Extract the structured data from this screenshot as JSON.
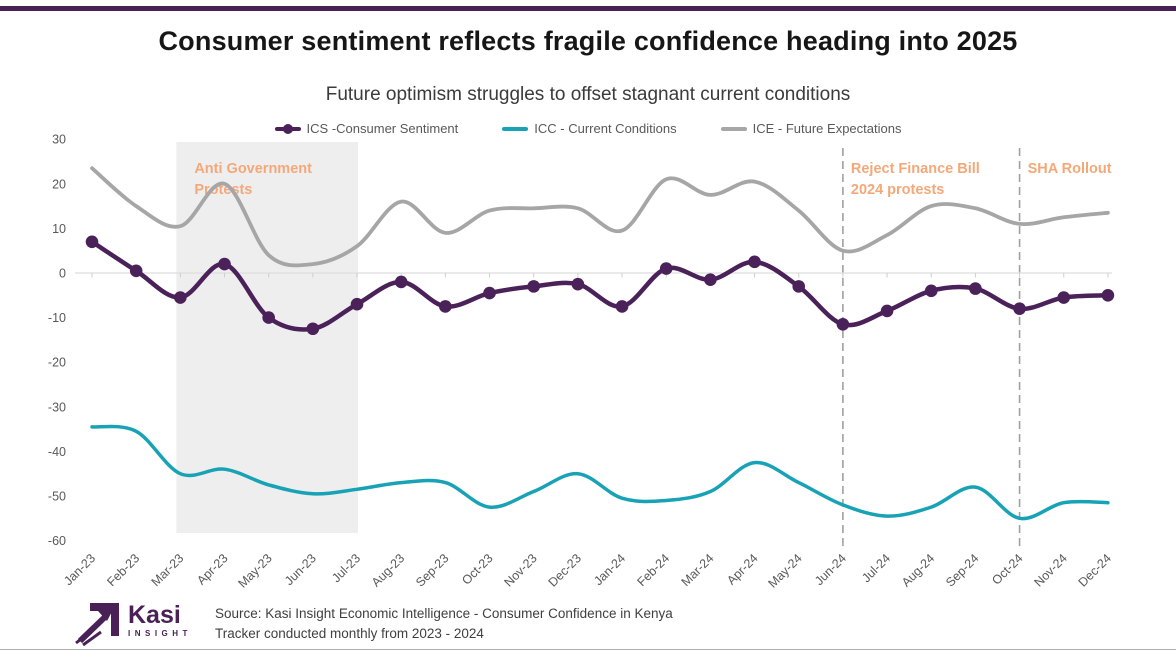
{
  "page": {
    "title": "Consumer sentiment reflects fragile confidence heading into 2025",
    "subtitle": "Future optimism struggles to offset stagnant current conditions",
    "top_bar_color": "#4a2156",
    "accent_orange": "#f4a879"
  },
  "legend": {
    "items": [
      {
        "label": "ICS -Consumer Sentiment",
        "color": "#4a2158",
        "marker": "line-dot"
      },
      {
        "label": "ICC - Current Conditions",
        "color": "#17a2b5",
        "marker": "line"
      },
      {
        "label": "ICE - Future Expectations",
        "color": "#a6a6a6",
        "marker": "line"
      }
    ]
  },
  "chart_data": {
    "type": "line",
    "x": [
      "Jan-23",
      "Feb-23",
      "Mar-23",
      "Apr-23",
      "May-23",
      "Jun-23",
      "Jul-23",
      "Aug-23",
      "Sep-23",
      "Oct-23",
      "Nov-23",
      "Dec-23",
      "Jan-24",
      "Feb-24",
      "Mar-24",
      "Apr-24",
      "May-24",
      "Jun-24",
      "Jul-24",
      "Aug-24",
      "Sep-24",
      "Oct-24",
      "Nov-24",
      "Dec-24"
    ],
    "series": [
      {
        "name": "ICS -Consumer Sentiment",
        "color": "#4a2158",
        "marker": true,
        "values": [
          7,
          0.5,
          -5.5,
          2,
          -10,
          -12.5,
          -7,
          -2,
          -7.5,
          -4.5,
          -3,
          -2.5,
          -7.5,
          1,
          -1.5,
          2.5,
          -3,
          -11.5,
          -8.5,
          -4,
          -3.5,
          -8,
          -5.5,
          -5
        ]
      },
      {
        "name": "ICC - Current Conditions",
        "color": "#17a2b5",
        "marker": false,
        "values": [
          -34.5,
          -35.5,
          -45,
          -44,
          -47.5,
          -49.5,
          -48.5,
          -47,
          -47,
          -52.5,
          -49,
          -45,
          -50.5,
          -51,
          -49,
          -42.5,
          -47,
          -52,
          -54.5,
          -52.5,
          -48,
          -55,
          -51.5,
          -51.5
        ]
      },
      {
        "name": "ICE - Future Expectations",
        "color": "#a6a6a6",
        "marker": false,
        "values": [
          23.5,
          15,
          10.5,
          20,
          4,
          2,
          6,
          16,
          9,
          14,
          14.5,
          14.5,
          9.5,
          21,
          17.5,
          20.5,
          14,
          5,
          8.5,
          15,
          14.5,
          11,
          12.5,
          13.5
        ]
      }
    ],
    "ylim": [
      -60,
      30
    ],
    "yticks": [
      30,
      20,
      10,
      0,
      -10,
      -20,
      -30,
      -40,
      -50,
      -60
    ],
    "grid": "zero-line-only",
    "legend_position": "top",
    "annotations": {
      "shaded_region": {
        "label_lines": [
          "Anti Government",
          "Protests"
        ],
        "from": "Mar-23",
        "to": "Jul-23",
        "fill": "#eeeeee",
        "label_color": "#f4a879"
      },
      "vlines": [
        {
          "label_lines": [
            "Reject Finance Bill",
            "2024 protests"
          ],
          "x": "Jun-24",
          "color": "#a0a0a0",
          "label_color": "#f4a879"
        },
        {
          "label_lines": [
            "SHA Rollout"
          ],
          "x": "Oct-24",
          "color": "#a0a0a0",
          "label_color": "#f4a879"
        }
      ]
    }
  },
  "footer": {
    "logo": {
      "name": "Kasi",
      "sub": "INSIGHT",
      "color": "#4a2156"
    },
    "source_lines": [
      "Source: Kasi Insight Economic Intelligence - Consumer Confidence in Kenya",
      "Tracker conducted monthly from 2023 - 2024"
    ]
  }
}
